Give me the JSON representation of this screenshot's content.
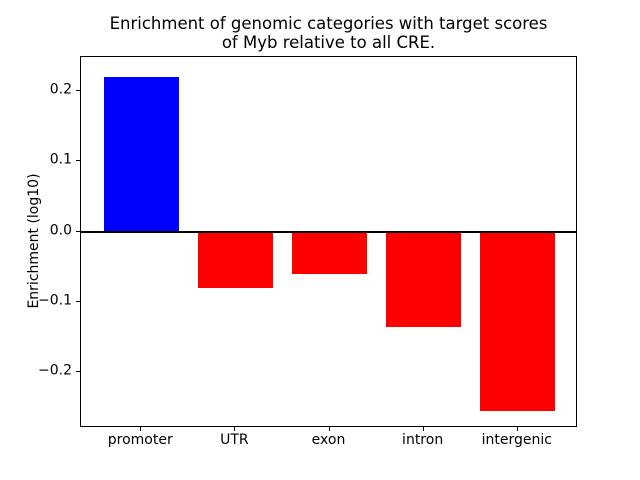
{
  "chart_data": {
    "type": "bar",
    "title": "Enrichment of genomic categories with target scores\nof Myb relative to all CRE.",
    "xlabel": "",
    "ylabel": "Enrichment (log10)",
    "categories": [
      "promoter",
      "UTR",
      "exon",
      "intron",
      "intergenic"
    ],
    "values": [
      0.22,
      -0.08,
      -0.06,
      -0.135,
      -0.255
    ],
    "bar_colors": [
      "#0000ff",
      "#ff0000",
      "#ff0000",
      "#ff0000",
      "#ff0000"
    ],
    "positive_color": "#0000ff",
    "negative_color": "#ff0000",
    "axis_color": "#000000",
    "background_color": "#ffffff",
    "ylim": [
      -0.279,
      0.248
    ],
    "xlim": [
      -0.64,
      4.64
    ],
    "bar_width": 0.8,
    "yticks": [
      0.2,
      0.1,
      0.0,
      -0.1,
      -0.2
    ],
    "ytick_labels": [
      "0.2",
      "0.1",
      "0.0",
      "−0.1",
      "−0.2"
    ],
    "zero_line": true,
    "grid": false,
    "legend": null
  }
}
